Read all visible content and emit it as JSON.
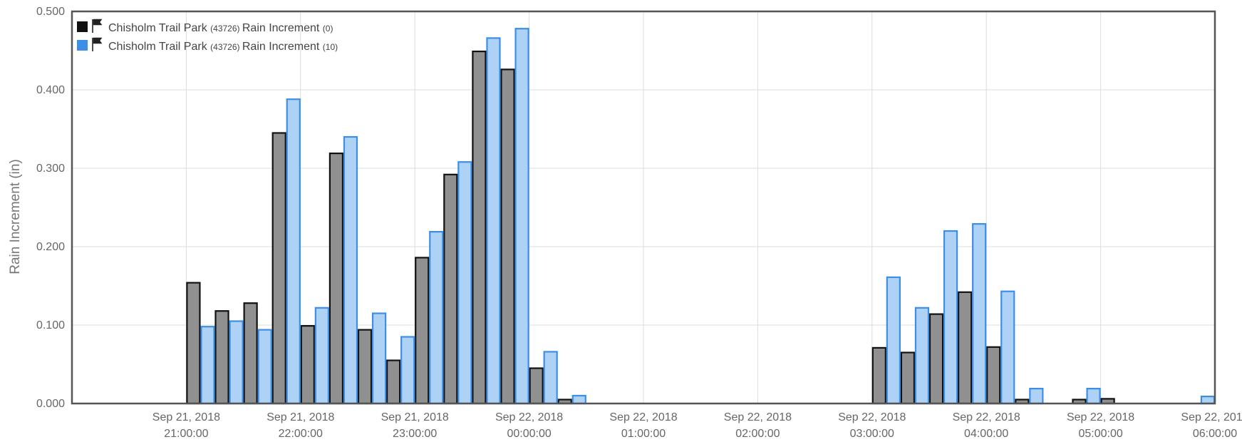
{
  "chart_data": {
    "type": "bar",
    "ylabel": "Rain Increment (in)",
    "ylim": [
      0,
      0.5
    ],
    "yticks": [
      "0.000",
      "0.100",
      "0.200",
      "0.300",
      "0.400",
      "0.500"
    ],
    "x_ticks": [
      {
        "line1": "Sep 21, 2018",
        "line2": "21:00:00"
      },
      {
        "line1": "Sep 21, 2018",
        "line2": "22:00:00"
      },
      {
        "line1": "Sep 21, 2018",
        "line2": "23:00:00"
      },
      {
        "line1": "Sep 22, 2018",
        "line2": "00:00:00"
      },
      {
        "line1": "Sep 22, 2018",
        "line2": "01:00:00"
      },
      {
        "line1": "Sep 22, 2018",
        "line2": "02:00:00"
      },
      {
        "line1": "Sep 22, 2018",
        "line2": "03:00:00"
      },
      {
        "line1": "Sep 22, 2018",
        "line2": "04:00:00"
      },
      {
        "line1": "Sep 22, 2018",
        "line2": "05:00:00"
      },
      {
        "line1": "Sep 22, 2018",
        "line2": "06:00:00"
      }
    ],
    "interval_minutes": 15,
    "x_start": "2018-09-21 20:00:00",
    "x_end": "2018-09-22 06:00:00",
    "grid": true,
    "legend_position": "top-left",
    "series": [
      {
        "name": "Chisholm Trail Park",
        "station": "(43726)",
        "sensor": "Rain Increment",
        "suffix": "(0)",
        "fill": "#909090",
        "stroke": "#111111",
        "swatch": "#111111",
        "values": [
          0,
          0,
          0,
          0,
          0.154,
          0.118,
          0.128,
          0.345,
          0.099,
          0.319,
          0.094,
          0.055,
          0.186,
          0.292,
          0.449,
          0.426,
          0.045,
          0.005,
          0,
          0,
          0,
          0,
          0,
          0,
          0,
          0,
          0,
          0,
          0.071,
          0.065,
          0.114,
          0.142,
          0.072,
          0.005,
          0,
          0.005,
          0.006,
          0,
          0,
          0
        ]
      },
      {
        "name": "Chisholm Trail Park",
        "station": "(43726)",
        "sensor": "Rain Increment",
        "suffix": "(10)",
        "fill": "#aed1f6",
        "stroke": "#3d8fe6",
        "swatch": "#3d8fe6",
        "values": [
          0,
          0,
          0,
          0,
          0.098,
          0.105,
          0.094,
          0.388,
          0.122,
          0.34,
          0.115,
          0.085,
          0.219,
          0.308,
          0.466,
          0.478,
          0.066,
          0.01,
          0,
          0,
          0,
          0,
          0,
          0,
          0,
          0,
          0,
          0,
          0.161,
          0.122,
          0.22,
          0.229,
          0.143,
          0.019,
          0,
          0.019,
          0,
          0,
          0,
          0.009
        ]
      }
    ]
  }
}
